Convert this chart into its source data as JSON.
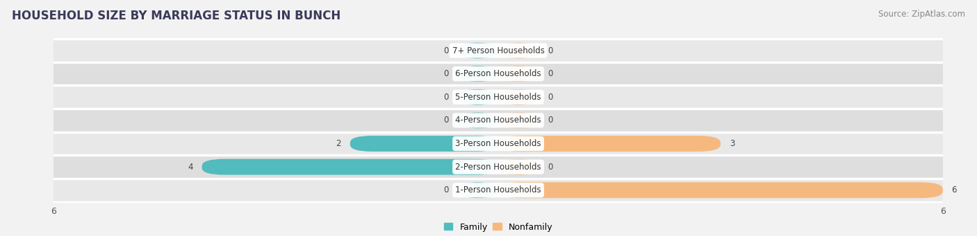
{
  "title": "HOUSEHOLD SIZE BY MARRIAGE STATUS IN BUNCH",
  "source": "Source: ZipAtlas.com",
  "categories": [
    "7+ Person Households",
    "6-Person Households",
    "5-Person Households",
    "4-Person Households",
    "3-Person Households",
    "2-Person Households",
    "1-Person Households"
  ],
  "family": [
    0,
    0,
    0,
    0,
    2,
    4,
    0
  ],
  "nonfamily": [
    0,
    0,
    0,
    0,
    3,
    0,
    6
  ],
  "family_color": "#52BBBD",
  "nonfamily_color": "#F5B97F",
  "bg_color": "#f2f2f2",
  "row_color_odd": "#e8e8e8",
  "row_color_even": "#e0e0e0",
  "xlim": 6,
  "min_stub": 0.55,
  "label_fontsize": 8.5,
  "title_fontsize": 12,
  "source_fontsize": 8.5,
  "title_color": "#3a3a5c",
  "source_color": "#888888",
  "value_color": "#444444"
}
